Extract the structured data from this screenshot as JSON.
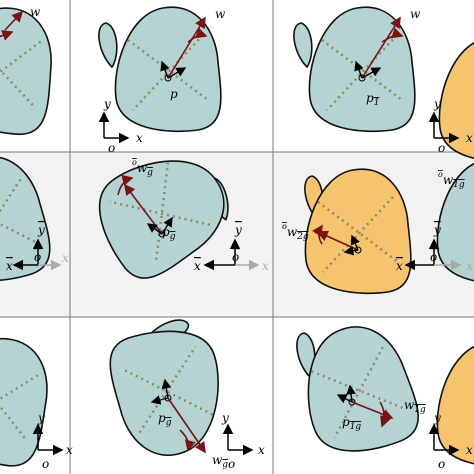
{
  "panels": [
    {
      "labels": [
        {
          "text": "w"
        }
      ]
    },
    {
      "labels": [
        {
          "text": "w"
        },
        {
          "text": "p"
        },
        {
          "text": "y"
        },
        {
          "text": "x"
        },
        {
          "text": "o"
        }
      ]
    },
    {
      "labels": [
        {
          "text": "w"
        },
        {
          "text": "p",
          "sub": "1"
        },
        {
          "text": "y"
        },
        {
          "text": "x"
        },
        {
          "text": "o"
        }
      ]
    },
    {
      "labels": [
        {
          "text": "y"
        },
        {
          "text": "x"
        },
        {
          "text": "o"
        },
        {
          "text": "x"
        }
      ]
    },
    {
      "labels": [
        {
          "pre": "o",
          "text": "w",
          "sub": "g"
        },
        {
          "text": "p",
          "sub": "g"
        },
        {
          "text": "y"
        },
        {
          "text": "x"
        },
        {
          "text": "o"
        },
        {
          "text": "x"
        }
      ]
    },
    {
      "labels": [
        {
          "pre": "o",
          "text": "w",
          "sub": "2g"
        },
        {
          "pre": "o",
          "text": "w",
          "sub": "1g"
        },
        {
          "text": "y"
        },
        {
          "text": "x"
        },
        {
          "text": "o"
        },
        {
          "text": "x"
        }
      ]
    },
    {
      "labels": [
        {
          "text": "y"
        },
        {
          "text": "o"
        },
        {
          "text": "x"
        }
      ]
    },
    {
      "labels": [
        {
          "text": "p",
          "sub": "g"
        },
        {
          "text": "w",
          "sub": "g"
        },
        {
          "text": "y"
        },
        {
          "text": "x"
        },
        {
          "text": "o"
        }
      ]
    },
    {
      "labels": [
        {
          "text": "w",
          "sub": "1g"
        },
        {
          "text": "p",
          "sub": "1g"
        },
        {
          "text": "y"
        },
        {
          "text": "o"
        },
        {
          "text": "x"
        }
      ]
    }
  ]
}
